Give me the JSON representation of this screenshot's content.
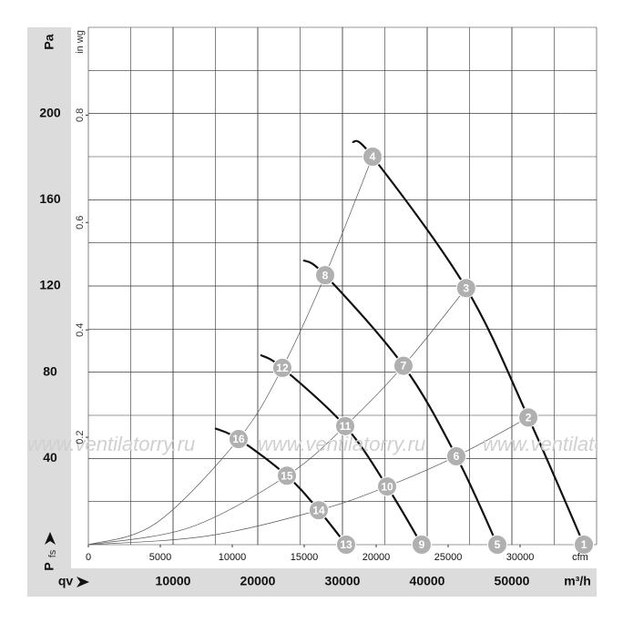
{
  "chart_data": {
    "type": "line",
    "y_label": "Pa",
    "y2_label": "in wg",
    "x_label": "m³/h",
    "x2_label": "cfm",
    "x_axis_symbol": "qv",
    "y_axis_symbol": "P",
    "y_axis_symbol_sub": "fs",
    "watermark": "www.ventilatorry.ru",
    "xlim": [
      0,
      60000
    ],
    "xticks": [
      10000,
      20000,
      30000,
      40000,
      50000
    ],
    "x2lim": [
      0,
      35315
    ],
    "x2ticks": [
      0,
      5000,
      10000,
      15000,
      20000,
      25000,
      30000
    ],
    "ylim": [
      0,
      240
    ],
    "yticks": [
      40,
      80,
      120,
      160,
      200
    ],
    "y2lim": [
      0,
      0.9635
    ],
    "y2ticks": [
      0.2,
      0.4,
      0.6,
      0.8
    ],
    "grid": true,
    "grid_color": "#333333",
    "series": [
      {
        "color": "#111111",
        "line_width": 2.2,
        "x": [
          31180,
          33550,
          44600,
          51940,
          58500
        ],
        "values": [
          187,
          180,
          119,
          59,
          0
        ]
      },
      {
        "color": "#111111",
        "line_width": 2.2,
        "x": [
          25380,
          27960,
          37200,
          43440,
          48280
        ],
        "values": [
          132,
          125,
          83,
          41,
          0
        ]
      },
      {
        "color": "#111111",
        "line_width": 2.2,
        "x": [
          20320,
          22900,
          30320,
          35270,
          39350
        ],
        "values": [
          88,
          82,
          55,
          27,
          0
        ]
      },
      {
        "color": "#111111",
        "line_width": 2.2,
        "x": [
          14950,
          17740,
          23440,
          27200,
          30430
        ],
        "values": [
          54,
          49,
          32,
          16,
          0
        ]
      },
      {
        "color": "#555555",
        "line_width": 0.7,
        "x": [
          0,
          8000,
          17740,
          22900,
          27960,
          33550
        ],
        "values": [
          0,
          10,
          49,
          82,
          125,
          180
        ]
      },
      {
        "color": "#555555",
        "line_width": 0.7,
        "x": [
          0,
          12000,
          23440,
          30320,
          37200,
          44600
        ],
        "values": [
          0,
          8,
          32,
          55,
          83,
          119
        ]
      },
      {
        "color": "#555555",
        "line_width": 0.7,
        "x": [
          0,
          14000,
          27200,
          35270,
          43440,
          51940
        ],
        "values": [
          0,
          4,
          16,
          27,
          41,
          59
        ]
      }
    ],
    "marker_color": "#b0b0b0",
    "markers": [
      {
        "label": "1",
        "x": 58500,
        "y": 0
      },
      {
        "label": "2",
        "x": 51940,
        "y": 59
      },
      {
        "label": "3",
        "x": 44600,
        "y": 119
      },
      {
        "label": "4",
        "x": 33550,
        "y": 180
      },
      {
        "label": "5",
        "x": 48280,
        "y": 0
      },
      {
        "label": "6",
        "x": 43440,
        "y": 41
      },
      {
        "label": "7",
        "x": 37200,
        "y": 83
      },
      {
        "label": "8",
        "x": 27960,
        "y": 125
      },
      {
        "label": "9",
        "x": 39350,
        "y": 0
      },
      {
        "label": "10",
        "x": 35270,
        "y": 27
      },
      {
        "label": "11",
        "x": 30320,
        "y": 55
      },
      {
        "label": "12",
        "x": 22900,
        "y": 82
      },
      {
        "label": "13",
        "x": 30430,
        "y": 0
      },
      {
        "label": "14",
        "x": 27200,
        "y": 16
      },
      {
        "label": "15",
        "x": 23440,
        "y": 32
      },
      {
        "label": "16",
        "x": 17740,
        "y": 49
      }
    ]
  }
}
